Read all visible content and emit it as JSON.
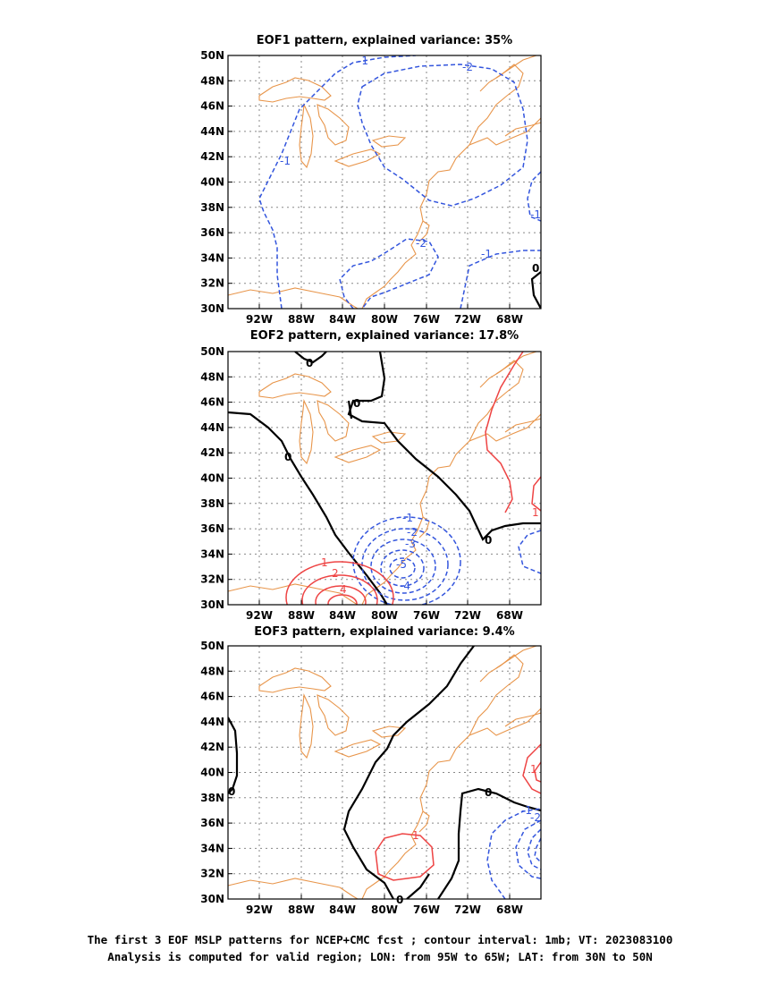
{
  "panels": [
    {
      "title": "EOF1 pattern, explained variance: 35%",
      "contour_labels": [
        "-1",
        "-2",
        "-1",
        "-1",
        "-2",
        "-1",
        "0"
      ]
    },
    {
      "title": "EOF2 pattern, explained variance: 17.8%",
      "contour_labels": [
        "0",
        "0",
        "0",
        "0",
        "-1",
        "-2",
        "-3",
        "-5",
        "-4",
        "1",
        "2",
        "4",
        "1"
      ]
    },
    {
      "title": "EOF3 pattern, explained variance: 9.4%",
      "contour_labels": [
        "0",
        "0",
        "0",
        "1",
        "-1",
        "-2",
        "1"
      ]
    }
  ],
  "lat_ticks": [
    "50N",
    "48N",
    "46N",
    "44N",
    "42N",
    "40N",
    "38N",
    "36N",
    "34N",
    "32N",
    "30N"
  ],
  "lon_ticks": [
    "92W",
    "88W",
    "84W",
    "80W",
    "76W",
    "72W",
    "68W"
  ],
  "colors": {
    "coast": "#e8954a",
    "negative": "#3355dd",
    "positive": "#ee4444",
    "zero": "#000000",
    "grid": "#888888"
  },
  "footer": {
    "line1": "The first 3 EOF MSLP patterns for NCEP+CMC fcst ; contour interval: 1mb; VT: 2023083100",
    "line2": "Analysis is computed for valid region; LON: from 95W to 65W; LAT: from 30N to 50N"
  }
}
